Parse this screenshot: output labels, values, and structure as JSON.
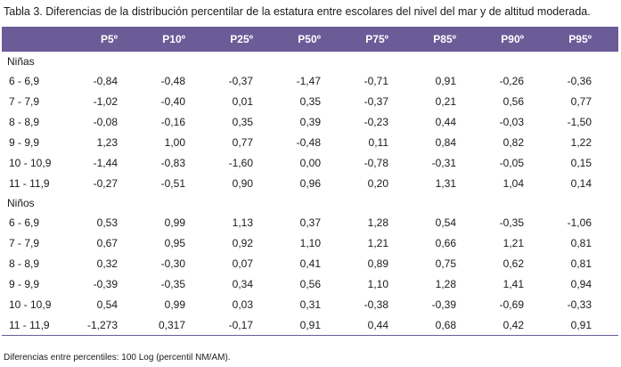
{
  "caption": "Tabla 3. Diferencias de la distribución percentilar de la estatura entre escolares del nivel del mar y de altitud moderada.",
  "header": [
    "P5º",
    "P10º",
    "P25º",
    "P50º",
    "P75º",
    "P85º",
    "P90º",
    "P95º"
  ],
  "groups": [
    {
      "label": "Niñas",
      "rows": [
        {
          "age": "6 - 6,9",
          "values": [
            "-0,84",
            "-0,48",
            "-0,37",
            "-1,47",
            "-0,71",
            "0,91",
            "-0,26",
            "-0,36"
          ]
        },
        {
          "age": "7 - 7,9",
          "values": [
            "-1,02",
            "-0,40",
            "0,01",
            "0,35",
            "-0,37",
            "0,21",
            "0,56",
            "0,77"
          ]
        },
        {
          "age": "8 - 8,9",
          "values": [
            "-0,08",
            "-0,16",
            "0,35",
            "0,39",
            "-0,23",
            "0,44",
            "-0,03",
            "-1,50"
          ]
        },
        {
          "age": "9 - 9,9",
          "values": [
            "1,23",
            "1,00",
            "0,77",
            "-0,48",
            "0,11",
            "0,84",
            "0,82",
            "1,22"
          ]
        },
        {
          "age": "10 - 10,9",
          "values": [
            "-1,44",
            "-0,83",
            "-1,60",
            "0,00",
            "-0,78",
            "-0,31",
            "-0,05",
            "0,15"
          ]
        },
        {
          "age": "11 - 11,9",
          "values": [
            "-0,27",
            "-0,51",
            "0,90",
            "0,96",
            "0,20",
            "1,31",
            "1,04",
            "0,14"
          ]
        }
      ]
    },
    {
      "label": "Niños",
      "rows": [
        {
          "age": "6 - 6,9",
          "values": [
            "0,53",
            "0,99",
            "1,13",
            "0,37",
            "1,28",
            "0,54",
            "-0,35",
            "-1,06"
          ]
        },
        {
          "age": "7 - 7,9",
          "values": [
            "0,67",
            "0,95",
            "0,92",
            "1,10",
            "1,21",
            "0,66",
            "1,21",
            "0,81"
          ]
        },
        {
          "age": "8 - 8,9",
          "values": [
            "0,32",
            "-0,30",
            "0,07",
            "0,41",
            "0,89",
            "0,75",
            "0,62",
            "0,81"
          ]
        },
        {
          "age": "9 - 9,9",
          "values": [
            "-0,39",
            "-0,35",
            "0,34",
            "0,56",
            "1,10",
            "1,28",
            "1,41",
            "0,94"
          ]
        },
        {
          "age": "10 - 10,9",
          "values": [
            "0,54",
            "0,99",
            "0,03",
            "0,31",
            "-0,38",
            "-0,39",
            "-0,69",
            "-0,33"
          ]
        },
        {
          "age": "11 - 11,9",
          "values": [
            "-1,273",
            "0,317",
            "-0,17",
            "0,91",
            "0,44",
            "0,68",
            "0,42",
            "0,91"
          ]
        }
      ]
    }
  ],
  "footnote": "Diferencias entre percentiles: 100 Log (percentil NM/AM)."
}
